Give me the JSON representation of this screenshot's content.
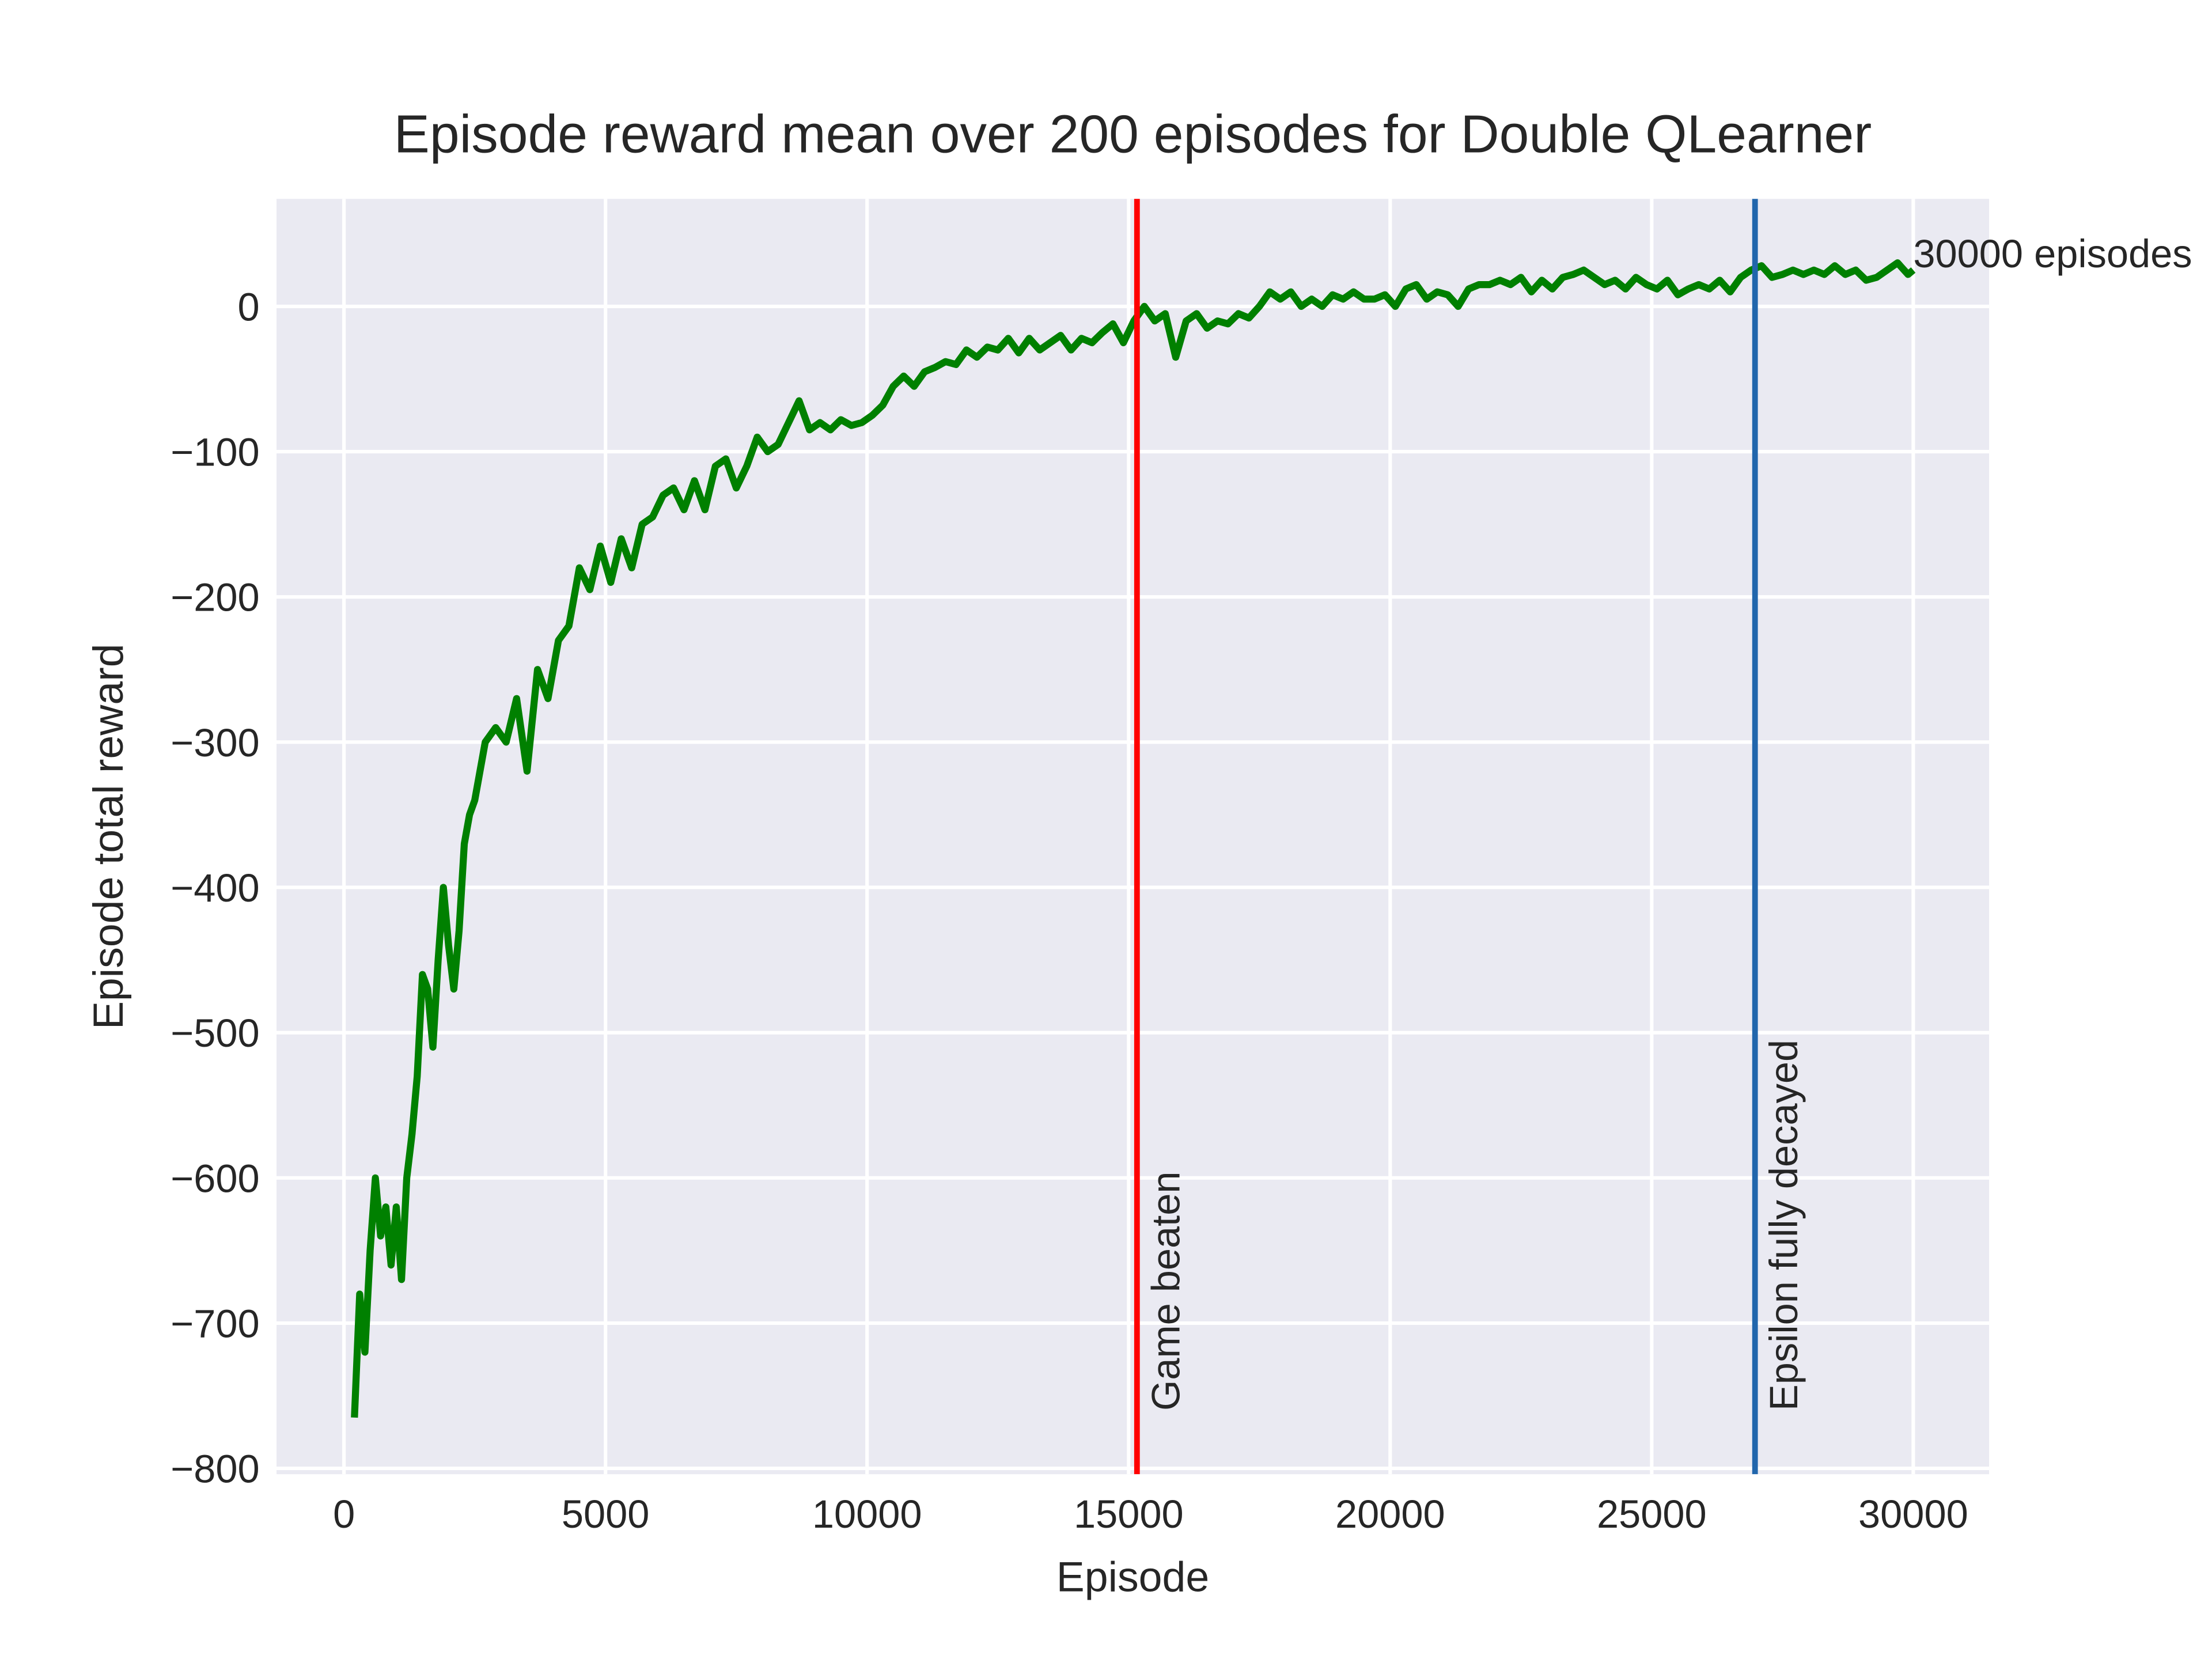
{
  "chart_data": {
    "type": "line",
    "title": "Episode reward mean over 200 episodes for Double QLearner",
    "x_label": "Episode",
    "y_label": "Episode total reward",
    "x": [
      200,
      300,
      400,
      500,
      600,
      700,
      800,
      900,
      1000,
      1100,
      1200,
      1300,
      1400,
      1500,
      1600,
      1700,
      1800,
      1900,
      2000,
      2100,
      2200,
      2300,
      2400,
      2500,
      2700,
      2900,
      3100,
      3300,
      3500,
      3700,
      3900,
      4100,
      4300,
      4500,
      4700,
      4900,
      5100,
      5300,
      5500,
      5700,
      5900,
      6100,
      6300,
      6500,
      6700,
      6900,
      7100,
      7300,
      7500,
      7700,
      7900,
      8100,
      8300,
      8500,
      8700,
      8900,
      9100,
      9300,
      9500,
      9700,
      9900,
      10100,
      10300,
      10500,
      10700,
      10900,
      11100,
      11300,
      11500,
      11700,
      11900,
      12100,
      12300,
      12500,
      12700,
      12900,
      13100,
      13300,
      13500,
      13700,
      13900,
      14100,
      14300,
      14500,
      14700,
      14900,
      15100,
      15300,
      15500,
      15700,
      15900,
      16100,
      16300,
      16500,
      16700,
      16900,
      17100,
      17300,
      17500,
      17700,
      17900,
      18100,
      18300,
      18500,
      18700,
      18900,
      19100,
      19300,
      19500,
      19700,
      19900,
      20100,
      20300,
      20500,
      20700,
      20900,
      21100,
      21300,
      21500,
      21700,
      21900,
      22100,
      22300,
      22500,
      22700,
      22900,
      23100,
      23300,
      23500,
      23700,
      23900,
      24100,
      24300,
      24500,
      24700,
      24900,
      25100,
      25300,
      25500,
      25700,
      25900,
      26100,
      26300,
      26500,
      26700,
      26900,
      27100,
      27300,
      27500,
      27700,
      27900,
      28100,
      28300,
      28500,
      28700,
      28900,
      29100,
      29300,
      29500,
      29700,
      29900,
      30000
    ],
    "series": [
      {
        "color": "#008000",
        "values": [
          -765,
          -680,
          -720,
          -650,
          -600,
          -640,
          -620,
          -660,
          -620,
          -670,
          -600,
          -570,
          -530,
          -460,
          -470,
          -510,
          -450,
          -400,
          -440,
          -470,
          -430,
          -370,
          -350,
          -340,
          -300,
          -290,
          -300,
          -270,
          -320,
          -250,
          -270,
          -230,
          -220,
          -180,
          -195,
          -165,
          -190,
          -160,
          -180,
          -150,
          -145,
          -130,
          -125,
          -140,
          -120,
          -140,
          -110,
          -105,
          -125,
          -110,
          -90,
          -100,
          -95,
          -80,
          -65,
          -85,
          -80,
          -85,
          -78,
          -82,
          -80,
          -75,
          -68,
          -55,
          -48,
          -55,
          -45,
          -42,
          -38,
          -40,
          -30,
          -35,
          -28,
          -30,
          -22,
          -32,
          -22,
          -30,
          -25,
          -20,
          -30,
          -22,
          -25,
          -18,
          -12,
          -25,
          -10,
          0,
          -10,
          -5,
          -35,
          -10,
          -5,
          -15,
          -10,
          -12,
          -5,
          -8,
          0,
          10,
          5,
          10,
          0,
          5,
          0,
          8,
          5,
          10,
          5,
          5,
          8,
          0,
          12,
          15,
          5,
          10,
          8,
          0,
          12,
          15,
          15,
          18,
          15,
          20,
          10,
          18,
          12,
          20,
          22,
          25,
          20,
          15,
          18,
          12,
          20,
          15,
          12,
          18,
          8,
          12,
          15,
          12,
          18,
          10,
          20,
          25,
          28,
          20,
          22,
          25,
          22,
          25,
          22,
          28,
          22,
          25,
          18,
          20,
          25,
          30,
          22,
          25
        ]
      }
    ],
    "vlines": [
      {
        "x": 15160,
        "color": "#ff0000",
        "label": "Game beaten"
      },
      {
        "x": 26975,
        "color": "#2166ac",
        "label": "Epsilon fully decayed"
      }
    ],
    "annotation": {
      "text": "30000 episodes",
      "x": 30000,
      "y": 27
    },
    "xlim": [
      -1290,
      31450
    ],
    "ylim": [
      -804,
      74
    ],
    "xticks": [
      0,
      5000,
      10000,
      15000,
      20000,
      25000,
      30000
    ],
    "yticks": [
      0,
      {
        "value": -100,
        "label": "−100"
      },
      {
        "value": -200,
        "label": "−200"
      },
      {
        "value": -300,
        "label": "−300"
      },
      {
        "value": -400,
        "label": "−400"
      },
      {
        "value": -500,
        "label": "−500"
      },
      {
        "value": -600,
        "label": "−600"
      },
      {
        "value": -700,
        "label": "−700"
      },
      {
        "value": -800,
        "label": "−800"
      }
    ],
    "grid": true
  }
}
